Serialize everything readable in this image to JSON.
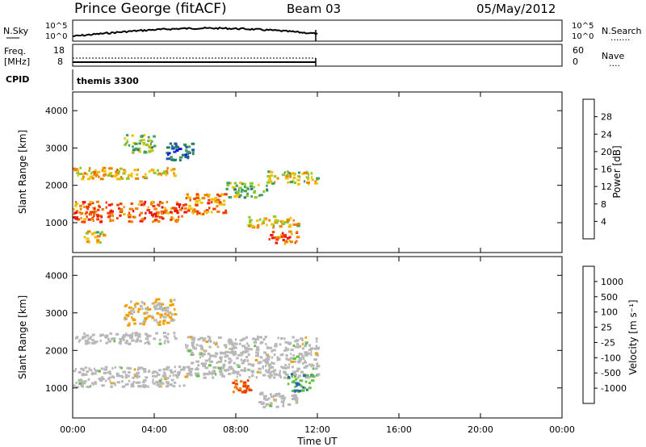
{
  "header": {
    "station": "Prince George (fitACF)",
    "beam": "Beam 03",
    "date": "05/May/2012"
  },
  "panels": {
    "nsky": {
      "label": "N.Sky",
      "ticks_left": [
        "10^5",
        "10^0"
      ],
      "ticks_right": [
        "10^5",
        "10^0"
      ],
      "right_label": "N.Search",
      "right_marker": "......."
    },
    "freq": {
      "label1": "Freq.",
      "label2": "[MHz]",
      "ticks_left": [
        "18",
        "8"
      ],
      "ticks_right": [
        "60",
        "0"
      ],
      "right_label": "Nave",
      "right_marker": "...."
    },
    "cpid": {
      "label": "CPID",
      "value": "themis 3300"
    }
  },
  "colors": {
    "frame": "#000000",
    "power_scale": [
      "#1010e0",
      "#2050c0",
      "#2a7a6a",
      "#40a060",
      "#90c830",
      "#f0c000",
      "#f08000",
      "#f04000",
      "#f01010"
    ],
    "velocity_scale": [
      "#f01010",
      "#f04000",
      "#f08000",
      "#f0b000",
      "#b8b8b8",
      "#b8b8b8",
      "#60c040",
      "#3f8a6a",
      "#2a6aa0",
      "#1a30c0"
    ]
  },
  "chart_data": [
    {
      "type": "heatmap",
      "name": "power",
      "ylabel": "Slant Range [km]",
      "yticks": [
        "1000",
        "2000",
        "3000",
        "4000"
      ],
      "ylim": [
        200,
        4500
      ],
      "xlim_hours": [
        0,
        24
      ],
      "colorbar": {
        "label": "Power [dB]",
        "ticks": [
          "4",
          "8",
          "12",
          "16",
          "20",
          "24",
          "28"
        ],
        "range": [
          0,
          32
        ]
      },
      "echo_bands": [
        {
          "t0": 0.0,
          "t1": 5.5,
          "r0": 1050,
          "r1": 1600,
          "level": 28
        },
        {
          "t0": 5.5,
          "t1": 7.5,
          "r0": 1250,
          "r1": 1800,
          "level": 26
        },
        {
          "t0": 7.5,
          "t1": 9.5,
          "r0": 1700,
          "r1": 2100,
          "level": 16
        },
        {
          "t0": 9.5,
          "t1": 12.0,
          "r0": 2050,
          "r1": 2400,
          "level": 20
        },
        {
          "t0": 0.0,
          "t1": 5.0,
          "r0": 2200,
          "r1": 2500,
          "level": 22
        },
        {
          "t0": 8.5,
          "t1": 11.0,
          "r0": 900,
          "r1": 1200,
          "level": 20
        },
        {
          "t0": 9.5,
          "t1": 11.0,
          "r0": 450,
          "r1": 800,
          "level": 28
        },
        {
          "t0": 2.5,
          "t1": 4.0,
          "r0": 2900,
          "r1": 3400,
          "level": 16
        },
        {
          "t0": 4.5,
          "t1": 6.0,
          "r0": 2700,
          "r1": 3200,
          "level": 8
        },
        {
          "t0": 0.3,
          "t1": 1.5,
          "r0": 500,
          "r1": 800,
          "level": 20
        }
      ]
    },
    {
      "type": "heatmap",
      "name": "velocity",
      "ylabel": "Slant Range [km]",
      "yticks": [
        "1000",
        "2000",
        "3000",
        "4000"
      ],
      "ylim": [
        200,
        4500
      ],
      "xlim_hours": [
        0,
        24
      ],
      "xlabel": "Time UT",
      "xticks": [
        "00:00",
        "04:00",
        "08:00",
        "12:00",
        "16:00",
        "20:00",
        "00:00"
      ],
      "colorbar": {
        "label": "Velocity [m s⁻¹]",
        "ticks": [
          "1000",
          "500",
          "100",
          "25",
          "-25",
          "-100",
          "-500",
          "-1000"
        ]
      },
      "echo_bands": [
        {
          "t0": 0.0,
          "t1": 5.5,
          "r0": 1050,
          "r1": 1600,
          "level": 0
        },
        {
          "t0": 5.5,
          "t1": 12.0,
          "r0": 1300,
          "r1": 2400,
          "level": 0
        },
        {
          "t0": 0.0,
          "t1": 5.0,
          "r0": 2200,
          "r1": 2500,
          "level": 0
        },
        {
          "t0": 7.8,
          "t1": 8.8,
          "r0": 900,
          "r1": 1250,
          "level": -500
        },
        {
          "t0": 10.5,
          "t1": 11.8,
          "r0": 900,
          "r1": 1400,
          "level": 100
        },
        {
          "t0": 9.0,
          "t1": 11.0,
          "r0": 500,
          "r1": 900,
          "level": 0
        },
        {
          "t0": 2.5,
          "t1": 5.0,
          "r0": 2700,
          "r1": 3400,
          "level": -100
        }
      ]
    }
  ]
}
